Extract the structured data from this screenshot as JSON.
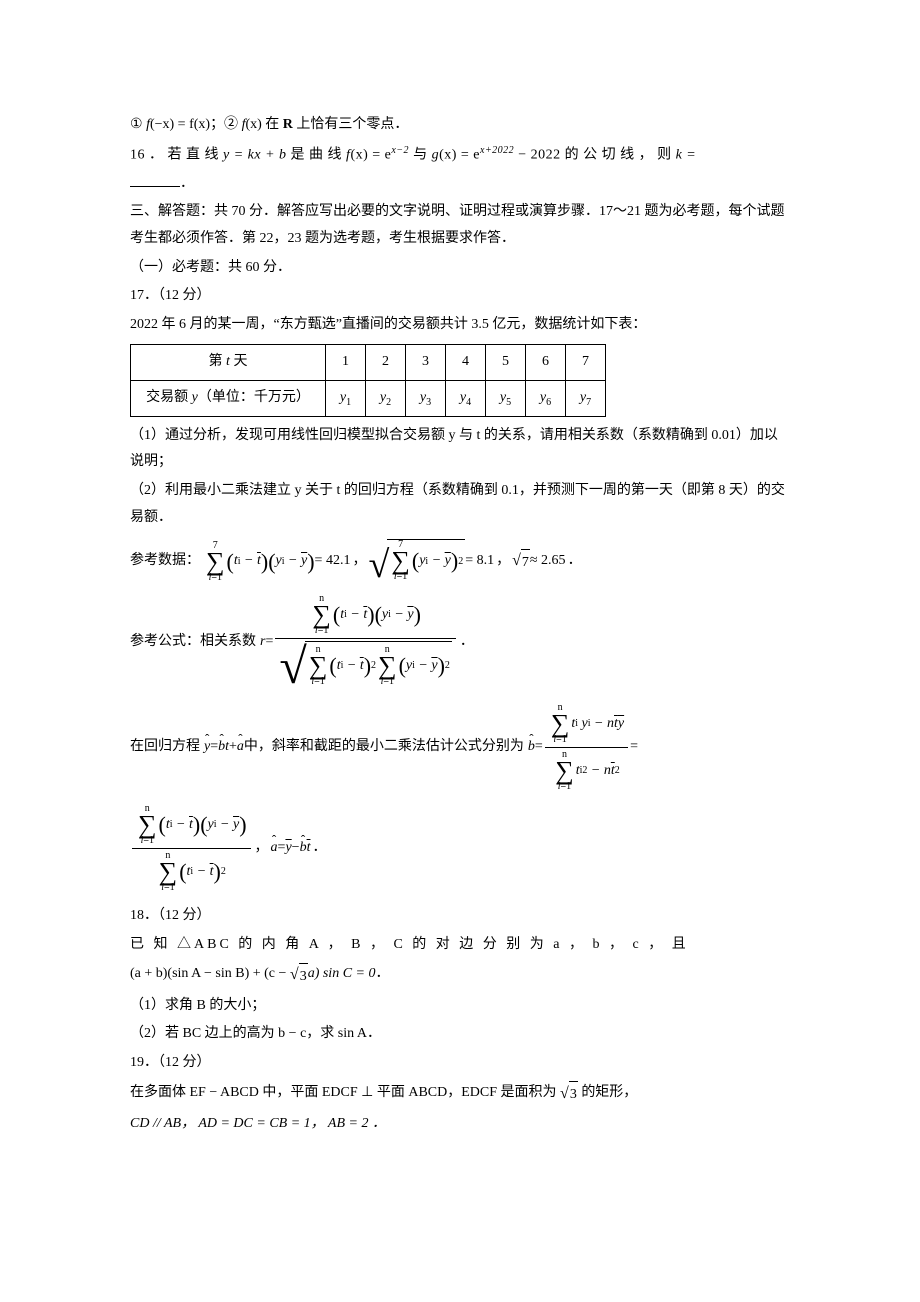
{
  "q15": {
    "cond1_prefix": "① ",
    "cond1_a": "f",
    "cond1_b": "(−x) = f(x)",
    "cond1_sep": "；② ",
    "cond2_a": "f",
    "cond2_b": "(x)",
    "cond2_text": " 在 ",
    "cond2_R": "R",
    "cond2_suffix": " 上恰有三个零点．"
  },
  "q16": {
    "prefix": "16 ． 若 直 线 ",
    "eq1": "y = kx + b",
    "mid1": " 是 曲 线 ",
    "f": "f",
    "feq": "(x) = e",
    "fexp": "x−2",
    "mid2": " 与 ",
    "g": "g",
    "geq": "(x) = e",
    "gexp": "x+2022",
    "gminus": " − 2022",
    "mid3": " 的 公 切 线 ， 则 ",
    "k": "k =",
    "tail": "．"
  },
  "section3": {
    "line1": "三、解答题：共 70 分．解答应写出必要的文字说明、证明过程或演算步骤．17～21 题为必考题，每个试题考生都必须作答．第 22，23 题为选考题，考生根据要求作答．",
    "line2": "（一）必考题：共 60 分．"
  },
  "q17": {
    "title": "17．（12 分）",
    "intro": "2022 年 6 月的某一周，“东方甄选”直播间的交易额共计 3.5 亿元，数据统计如下表：",
    "table": {
      "hdr_row1": "第 t 天",
      "hdr_row2": "交易额 y（单位：千万元）",
      "cols": [
        "1",
        "2",
        "3",
        "4",
        "5",
        "6",
        "7"
      ],
      "vals": [
        "y",
        "y",
        "y",
        "y",
        "y",
        "y",
        "y"
      ],
      "subs": [
        "1",
        "2",
        "3",
        "4",
        "5",
        "6",
        "7"
      ]
    },
    "p1": "（1）通过分析，发现可用线性回归模型拟合交易额 y 与 t 的关系，请用相关系数（系数精确到 0.01）加以说明；",
    "p2": "（2）利用最小二乘法建立 y 关于 t 的回归方程（系数精确到 0.1，并预测下一周的第一天（即第 8 天）的交易额．",
    "refdata_prefix": "参考数据：",
    "refdata_val1": " = 42.1",
    "refdata_sep1": "，",
    "refdata_val2": " = 8.1",
    "refdata_sep2": "，",
    "refdata_sqrt7": "7",
    "refdata_approx": " ≈ 2.65",
    "refdata_tail": "．",
    "refformula_prefix": "参考公式：相关系数 ",
    "rvar": "r",
    "requals": " =",
    "reg_prefix": "在回归方程 ",
    "yhat": "y",
    "eq": " = ",
    "bhat": "b",
    "tvar": "t",
    "plus": " + ",
    "ahat": "a",
    "reg_mid": " 中，斜率和截距的最小二乘法估计公式分别为 ",
    "reg_tail": " =",
    "comma": "，",
    "ahat_eq": " = ",
    "ybar": "y",
    "minus": " − ",
    "tbar": "t",
    "period": " ．",
    "sumtop7": "7",
    "sumtopn": "n",
    "sumbot": "i",
    "sumboteq": "=1",
    "ti": "t",
    "yi": "y",
    "subi": "i",
    "sq": "2",
    "ntbar_ybar": "n t̄ ȳ",
    "ntbar2_pre": "n",
    "ntbar2_bar": "t",
    "ntbar2_exp": "2"
  },
  "q18": {
    "title": "18．（12 分）",
    "line1": "已 知 △ABC 的 内 角 A ， B ， C 的 对 边 分 别 为 a ， b ， c ， 且",
    "eq_a": "(a + b)(sin A − sin B) + (c − ",
    "eq_sqrt": "3",
    "eq_b": "a) sin C = 0",
    "eq_tail": "．",
    "p1": "（1）求角 B 的大小；",
    "p2": "（2）若 BC 边上的高为 b − c，求 sin A．"
  },
  "q19": {
    "title": "19．（12 分）",
    "line1a": "在多面体 EF − ABCD 中，平面 EDCF ⊥ 平面 ABCD，EDCF 是面积为 ",
    "line1sqrt": "3",
    "line1b": " 的矩形，",
    "line2": "CD // AB， AD = DC = CB = 1， AB = 2 ．"
  }
}
